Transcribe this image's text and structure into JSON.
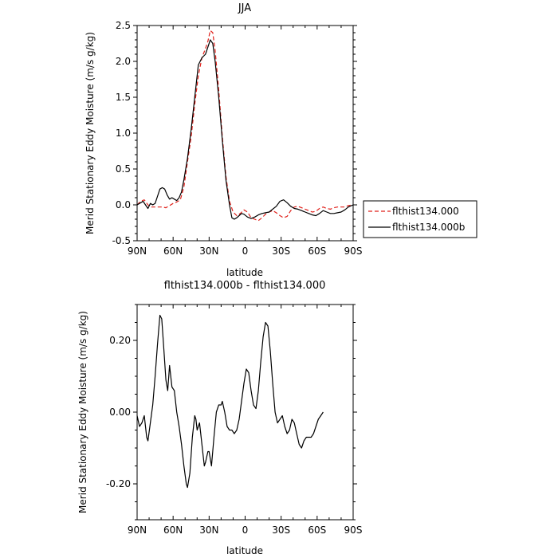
{
  "chart_data": [
    {
      "type": "line",
      "title": "JJA",
      "xlabel": "latitude",
      "ylabel": "Merid Stationary Eddy Moisture (m/s g/kg)",
      "xlim": [
        90,
        -90
      ],
      "ylim": [
        -0.5,
        2.5
      ],
      "x_ticks": [
        90,
        60,
        30,
        0,
        -30,
        -60,
        -90
      ],
      "x_tick_labels": [
        "90N",
        "60N",
        "30N",
        "0",
        "30S",
        "60S",
        "90S"
      ],
      "y_ticks": [
        -0.5,
        0.0,
        0.5,
        1.0,
        1.5,
        2.0,
        2.5
      ],
      "y_tick_labels": [
        "-0.5",
        "0.0",
        "0.5",
        "1.0",
        "1.5",
        "2.0",
        "2.5"
      ],
      "grid": false,
      "legend_position": "right",
      "series": [
        {
          "name": "flthist134.000",
          "color": "#e0201a",
          "dash": "dashed",
          "points": [
            [
              90,
              0.0
            ],
            [
              87,
              0.05
            ],
            [
              84,
              0.07
            ],
            [
              81,
              0.0
            ],
            [
              78,
              -0.03
            ],
            [
              75,
              -0.03
            ],
            [
              72,
              -0.03
            ],
            [
              69,
              -0.03
            ],
            [
              66,
              -0.04
            ],
            [
              63,
              -0.01
            ],
            [
              60,
              0.02
            ],
            [
              57,
              0.04
            ],
            [
              54,
              0.07
            ],
            [
              51,
              0.25
            ],
            [
              48,
              0.6
            ],
            [
              45,
              0.95
            ],
            [
              42,
              1.4
            ],
            [
              39,
              1.8
            ],
            [
              36,
              2.05
            ],
            [
              33,
              2.18
            ],
            [
              31,
              2.28
            ],
            [
              29,
              2.43
            ],
            [
              27,
              2.4
            ],
            [
              25,
              2.15
            ],
            [
              22,
              1.6
            ],
            [
              19,
              0.95
            ],
            [
              16,
              0.4
            ],
            [
              13,
              0.05
            ],
            [
              10,
              -0.1
            ],
            [
              7,
              -0.15
            ],
            [
              4,
              -0.12
            ],
            [
              1,
              -0.07
            ],
            [
              -2,
              -0.1
            ],
            [
              -5,
              -0.18
            ],
            [
              -8,
              -0.2
            ],
            [
              -11,
              -0.22
            ],
            [
              -14,
              -0.18
            ],
            [
              -17,
              -0.13
            ],
            [
              -20,
              -0.1
            ],
            [
              -23,
              -0.08
            ],
            [
              -26,
              -0.11
            ],
            [
              -29,
              -0.15
            ],
            [
              -32,
              -0.18
            ],
            [
              -35,
              -0.16
            ],
            [
              -38,
              -0.08
            ],
            [
              -41,
              -0.03
            ],
            [
              -44,
              -0.02
            ],
            [
              -47,
              -0.04
            ],
            [
              -50,
              -0.06
            ],
            [
              -53,
              -0.08
            ],
            [
              -56,
              -0.1
            ],
            [
              -59,
              -0.09
            ],
            [
              -62,
              -0.05
            ],
            [
              -65,
              -0.03
            ],
            [
              -68,
              -0.05
            ],
            [
              -71,
              -0.06
            ],
            [
              -74,
              -0.04
            ],
            [
              -77,
              -0.03
            ],
            [
              -80,
              -0.03
            ],
            [
              -83,
              -0.03
            ],
            [
              -86,
              -0.01
            ],
            [
              -90,
              0.0
            ]
          ]
        },
        {
          "name": "flthist134.000b",
          "color": "#000000",
          "dash": "solid",
          "points": [
            [
              90,
              0.0
            ],
            [
              87,
              0.03
            ],
            [
              85,
              0.05
            ],
            [
              83,
              0.0
            ],
            [
              81,
              -0.05
            ],
            [
              79,
              0.02
            ],
            [
              77,
              0.0
            ],
            [
              75,
              0.02
            ],
            [
              73,
              0.12
            ],
            [
              71,
              0.22
            ],
            [
              69,
              0.24
            ],
            [
              67,
              0.22
            ],
            [
              65,
              0.14
            ],
            [
              63,
              0.08
            ],
            [
              61,
              0.1
            ],
            [
              59,
              0.08
            ],
            [
              57,
              0.06
            ],
            [
              55,
              0.1
            ],
            [
              53,
              0.18
            ],
            [
              51,
              0.35
            ],
            [
              48,
              0.65
            ],
            [
              45,
              1.05
            ],
            [
              42,
              1.5
            ],
            [
              39,
              1.95
            ],
            [
              36,
              2.05
            ],
            [
              33,
              2.1
            ],
            [
              31,
              2.2
            ],
            [
              29,
              2.3
            ],
            [
              27,
              2.25
            ],
            [
              25,
              2.0
            ],
            [
              22,
              1.5
            ],
            [
              19,
              0.9
            ],
            [
              16,
              0.35
            ],
            [
              13,
              0.0
            ],
            [
              11,
              -0.18
            ],
            [
              9,
              -0.2
            ],
            [
              7,
              -0.18
            ],
            [
              5,
              -0.15
            ],
            [
              3,
              -0.12
            ],
            [
              1,
              -0.13
            ],
            [
              -2,
              -0.17
            ],
            [
              -5,
              -0.19
            ],
            [
              -8,
              -0.17
            ],
            [
              -11,
              -0.14
            ],
            [
              -14,
              -0.12
            ],
            [
              -17,
              -0.11
            ],
            [
              -20,
              -0.1
            ],
            [
              -23,
              -0.06
            ],
            [
              -26,
              -0.02
            ],
            [
              -29,
              0.05
            ],
            [
              -32,
              0.07
            ],
            [
              -35,
              0.03
            ],
            [
              -38,
              -0.02
            ],
            [
              -41,
              -0.05
            ],
            [
              -44,
              -0.06
            ],
            [
              -47,
              -0.08
            ],
            [
              -50,
              -0.1
            ],
            [
              -53,
              -0.12
            ],
            [
              -56,
              -0.14
            ],
            [
              -59,
              -0.15
            ],
            [
              -62,
              -0.12
            ],
            [
              -65,
              -0.08
            ],
            [
              -68,
              -0.1
            ],
            [
              -71,
              -0.12
            ],
            [
              -74,
              -0.12
            ],
            [
              -77,
              -0.11
            ],
            [
              -80,
              -0.1
            ],
            [
              -83,
              -0.07
            ],
            [
              -86,
              -0.03
            ],
            [
              -90,
              0.0
            ]
          ]
        }
      ]
    },
    {
      "type": "line",
      "title": "flthist134.000b - flthist134.000",
      "xlabel": "latitude",
      "ylabel": "Merid Stationary Eddy Moisture (m/s g/kg)",
      "xlim": [
        90,
        -90
      ],
      "ylim": [
        -0.3,
        0.3
      ],
      "x_ticks": [
        90,
        60,
        30,
        0,
        -30,
        -60,
        -90
      ],
      "x_tick_labels": [
        "90N",
        "60N",
        "30N",
        "0",
        "30S",
        "60S",
        "90S"
      ],
      "y_ticks": [
        -0.2,
        0.0,
        0.2
      ],
      "y_tick_labels": [
        "-0.20",
        "0.00",
        "0.20"
      ],
      "grid": false,
      "series": [
        {
          "color": "#000000",
          "dash": "solid",
          "points": [
            [
              90,
              -0.01
            ],
            [
              88,
              -0.04
            ],
            [
              86,
              -0.03
            ],
            [
              84,
              -0.01
            ],
            [
              82,
              -0.07
            ],
            [
              81,
              -0.08
            ],
            [
              79,
              -0.03
            ],
            [
              77,
              0.02
            ],
            [
              75,
              0.1
            ],
            [
              73,
              0.19
            ],
            [
              71,
              0.27
            ],
            [
              69.5,
              0.26
            ],
            [
              68,
              0.19
            ],
            [
              66,
              0.09
            ],
            [
              64.5,
              0.06
            ],
            [
              63,
              0.13
            ],
            [
              61,
              0.07
            ],
            [
              59,
              0.06
            ],
            [
              57,
              0.0
            ],
            [
              55,
              -0.04
            ],
            [
              53,
              -0.09
            ],
            [
              51,
              -0.15
            ],
            [
              49,
              -0.2
            ],
            [
              48,
              -0.21
            ],
            [
              46,
              -0.17
            ],
            [
              44,
              -0.07
            ],
            [
              42,
              -0.01
            ],
            [
              41,
              -0.02
            ],
            [
              40,
              -0.05
            ],
            [
              38,
              -0.03
            ],
            [
              36,
              -0.09
            ],
            [
              34,
              -0.15
            ],
            [
              33,
              -0.14
            ],
            [
              31,
              -0.11
            ],
            [
              30,
              -0.11
            ],
            [
              28,
              -0.15
            ],
            [
              26,
              -0.07
            ],
            [
              24,
              0.0
            ],
            [
              22,
              0.02
            ],
            [
              20,
              0.02
            ],
            [
              19,
              0.03
            ],
            [
              17,
              0.0
            ],
            [
              15,
              -0.04
            ],
            [
              13,
              -0.05
            ],
            [
              11,
              -0.05
            ],
            [
              9,
              -0.06
            ],
            [
              7,
              -0.05
            ],
            [
              5,
              -0.02
            ],
            [
              3,
              0.03
            ],
            [
              1,
              0.08
            ],
            [
              -1,
              0.12
            ],
            [
              -3,
              0.11
            ],
            [
              -5,
              0.06
            ],
            [
              -7,
              0.02
            ],
            [
              -9,
              0.01
            ],
            [
              -11,
              0.06
            ],
            [
              -13,
              0.14
            ],
            [
              -15,
              0.21
            ],
            [
              -17,
              0.25
            ],
            [
              -19,
              0.24
            ],
            [
              -21,
              0.17
            ],
            [
              -23,
              0.08
            ],
            [
              -25,
              0.0
            ],
            [
              -27,
              -0.03
            ],
            [
              -29,
              -0.02
            ],
            [
              -31,
              -0.01
            ],
            [
              -33,
              -0.04
            ],
            [
              -35,
              -0.06
            ],
            [
              -37,
              -0.05
            ],
            [
              -39,
              -0.02
            ],
            [
              -41,
              -0.03
            ],
            [
              -43,
              -0.06
            ],
            [
              -45,
              -0.09
            ],
            [
              -47,
              -0.1
            ],
            [
              -49,
              -0.08
            ],
            [
              -51,
              -0.07
            ],
            [
              -53,
              -0.07
            ],
            [
              -55,
              -0.07
            ],
            [
              -57,
              -0.06
            ],
            [
              -59,
              -0.04
            ],
            [
              -61,
              -0.02
            ],
            [
              -63,
              -0.01
            ],
            [
              -65,
              0.0
            ]
          ]
        }
      ]
    }
  ]
}
